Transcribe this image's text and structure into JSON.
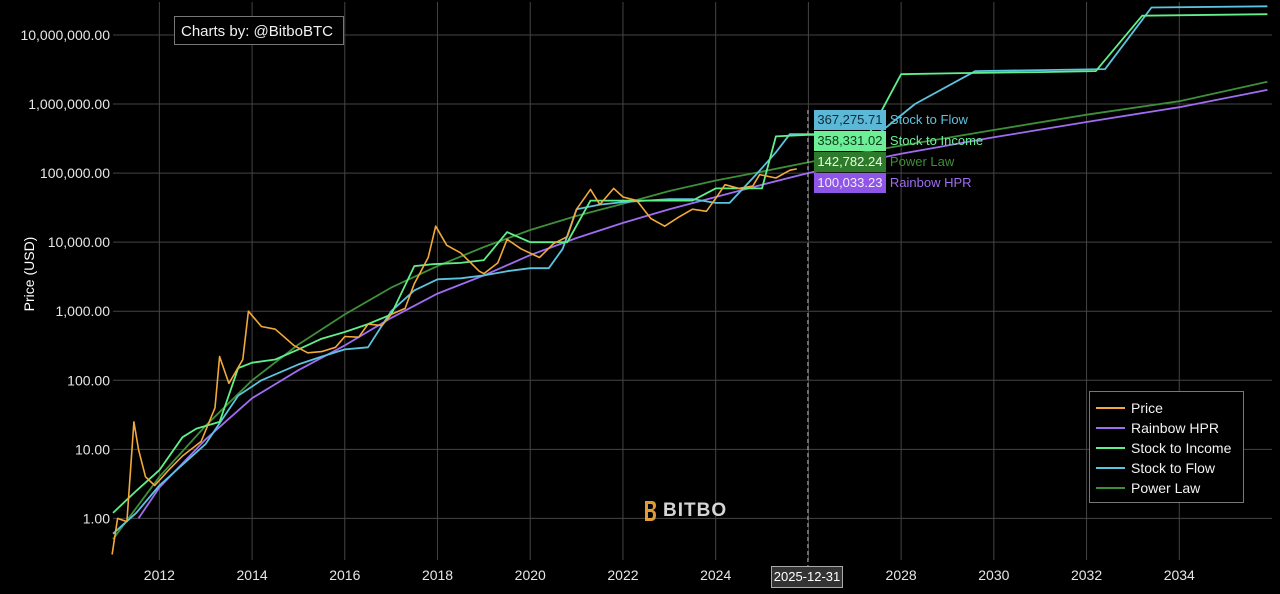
{
  "credit": "Charts by: @BitboBTC",
  "logo_text": "BITBO",
  "hover_date": "2025-12-31",
  "colors": {
    "Price": "#f2a93b",
    "Rainbow HPR": "#a06cf0",
    "Stock to Income": "#5ff08a",
    "Stock to Flow": "#5bc4e0",
    "Power Law": "#3f8f3a"
  },
  "hover_values": [
    {
      "name": "Stock to Flow",
      "value": "367,275.71",
      "bg": "#5bb8d6",
      "fg": "#0d2b3a",
      "namecolor": "#5bc4e0"
    },
    {
      "name": "Stock to Income",
      "value": "358,331.02",
      "bg": "#6cef96",
      "fg": "#0d3a1a",
      "namecolor": "#6cef96"
    },
    {
      "name": "Power Law",
      "value": "142,782.24",
      "bg": "#2f7a2a",
      "fg": "#e8ffe8",
      "namecolor": "#3f8f3a"
    },
    {
      "name": "Rainbow HPR",
      "value": "100,033.23",
      "bg": "#8f55e6",
      "fg": "#f2e9ff",
      "namecolor": "#a06cf0"
    }
  ],
  "chart_data": {
    "type": "line",
    "ylabel": "Price (USD)",
    "yscale": "log",
    "ylim": [
      0.25,
      30000000
    ],
    "xlim": [
      2011.0,
      2036.0
    ],
    "x_ticks": [
      "2012",
      "2014",
      "2016",
      "2018",
      "2020",
      "2022",
      "2024",
      "2026",
      "2028",
      "2030",
      "2032",
      "2034"
    ],
    "y_ticks": [
      "1.00",
      "10.00",
      "100.00",
      "1,000.00",
      "10,000.00",
      "100,000.00",
      "1,000,000.00",
      "10,000,000.00"
    ],
    "grid": true,
    "legend_position": "bottom-right",
    "legend": [
      "Price",
      "Rainbow HPR",
      "Stock to Income",
      "Stock to Flow",
      "Power Law"
    ],
    "series": [
      {
        "name": "Price",
        "x": [
          2010.98,
          2011.1,
          2011.3,
          2011.45,
          2011.55,
          2011.7,
          2011.9,
          2012.2,
          2012.5,
          2012.9,
          2013.2,
          2013.3,
          2013.5,
          2013.8,
          2013.92,
          2014.2,
          2014.5,
          2014.9,
          2015.2,
          2015.5,
          2015.8,
          2016.0,
          2016.3,
          2016.5,
          2016.8,
          2017.0,
          2017.3,
          2017.5,
          2017.8,
          2017.96,
          2018.2,
          2018.5,
          2018.9,
          2019.0,
          2019.3,
          2019.5,
          2019.8,
          2020.2,
          2020.5,
          2020.8,
          2021.0,
          2021.3,
          2021.5,
          2021.8,
          2022.0,
          2022.3,
          2022.6,
          2022.9,
          2023.2,
          2023.5,
          2023.8,
          2024.0,
          2024.2,
          2024.5,
          2024.8,
          2024.95,
          2025.3,
          2025.6,
          2025.75
        ],
        "y": [
          0.3,
          1.0,
          0.9,
          25,
          10,
          4,
          3,
          5,
          8,
          13,
          40,
          220,
          90,
          200,
          1000,
          600,
          550,
          320,
          250,
          260,
          300,
          430,
          420,
          650,
          620,
          900,
          1100,
          2500,
          6000,
          17000,
          9000,
          7000,
          3800,
          3500,
          5000,
          11000,
          8000,
          6000,
          9500,
          12000,
          30000,
          58000,
          35000,
          60000,
          45000,
          40000,
          22000,
          17000,
          23000,
          30000,
          28000,
          43000,
          68000,
          60000,
          65000,
          95000,
          85000,
          110000,
          115000
        ]
      },
      {
        "name": "Rainbow HPR",
        "x": [
          2011.55,
          2012,
          2013,
          2014,
          2015,
          2016,
          2017,
          2018,
          2019,
          2020,
          2021,
          2022,
          2023,
          2024,
          2025,
          2025.99,
          2027,
          2028,
          2030,
          2032,
          2034,
          2035.9
        ],
        "y": [
          1.0,
          2.8,
          14,
          55,
          140,
          320,
          800,
          1800,
          3300,
          6500,
          11500,
          19000,
          30000,
          45000,
          68000,
          100000,
          140000,
          190000,
          330000,
          550000,
          900000,
          1600000
        ]
      },
      {
        "name": "Stock to Income",
        "x": [
          2011.0,
          2011.5,
          2012.0,
          2012.5,
          2012.8,
          2013.3,
          2013.7,
          2014.0,
          2014.5,
          2015.0,
          2015.5,
          2016.0,
          2016.5,
          2017.0,
          2017.5,
          2017.9,
          2018.5,
          2019.0,
          2019.5,
          2020.0,
          2020.5,
          2020.8,
          2021.3,
          2021.7,
          2022.0,
          2022.5,
          2023.0,
          2023.5,
          2024.0,
          2024.5,
          2025.0,
          2025.3,
          2025.99,
          2026.5,
          2027.3,
          2028.0,
          2029.3,
          2031.0,
          2032.2,
          2033.2,
          2035.9
        ],
        "y": [
          1.2,
          2.5,
          5,
          15,
          20,
          25,
          150,
          180,
          200,
          280,
          400,
          500,
          650,
          900,
          4500,
          4800,
          5000,
          5500,
          14000,
          10000,
          10000,
          10000,
          40000,
          40000,
          40000,
          40000,
          40000,
          40000,
          60000,
          60000,
          60000,
          340000,
          358000,
          358000,
          358000,
          2700000,
          2800000,
          2900000,
          3000000,
          19000000,
          20000000
        ]
      },
      {
        "name": "Stock to Flow",
        "x": [
          2011.0,
          2011.5,
          2012.0,
          2012.5,
          2013.0,
          2013.7,
          2014.2,
          2015.0,
          2015.5,
          2016.0,
          2016.5,
          2017.0,
          2017.5,
          2018.0,
          2018.5,
          2019.0,
          2019.5,
          2020.0,
          2020.4,
          2020.7,
          2021.0,
          2021.5,
          2022.0,
          2022.5,
          2023.0,
          2023.5,
          2024.0,
          2024.3,
          2024.9,
          2025.3,
          2025.6,
          2025.99,
          2026.6,
          2027.5,
          2028.3,
          2029.6,
          2031.0,
          2032.4,
          2033.4,
          2035.9
        ],
        "y": [
          0.6,
          1.2,
          3,
          6,
          12,
          60,
          100,
          170,
          220,
          280,
          300,
          1000,
          2000,
          2900,
          3000,
          3300,
          3800,
          4200,
          4200,
          8000,
          30000,
          35000,
          38000,
          40000,
          42000,
          42000,
          37000,
          37000,
          100000,
          200000,
          367000,
          367000,
          367000,
          367000,
          1000000,
          3000000,
          3100000,
          3200000,
          25000000,
          26000000
        ]
      },
      {
        "name": "Power Law",
        "x": [
          2011.0,
          2012,
          2013,
          2014,
          2015,
          2016,
          2017,
          2018,
          2019,
          2020,
          2021,
          2022,
          2023,
          2024,
          2025,
          2025.99,
          2027,
          2028,
          2030,
          2032,
          2034,
          2035.9
        ],
        "y": [
          0.5,
          4,
          22,
          100,
          330,
          900,
          2200,
          4500,
          8500,
          15000,
          24000,
          36000,
          55000,
          78000,
          105000,
          142782,
          190000,
          250000,
          420000,
          700000,
          1100000,
          2100000
        ]
      }
    ]
  }
}
